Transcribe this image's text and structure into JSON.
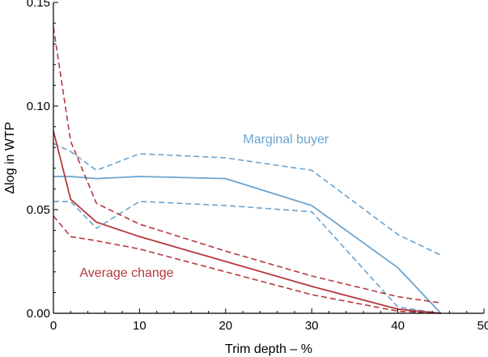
{
  "chart_data": {
    "type": "line",
    "title": "",
    "xlabel": "Trim depth – %",
    "ylabel": "Δlog in WTP",
    "xlim": [
      0,
      50
    ],
    "ylim": [
      0,
      0.15
    ],
    "xticks": [
      0,
      10,
      20,
      30,
      40,
      50
    ],
    "xtick_labels": [
      "0",
      "10",
      "20",
      "30",
      "40",
      "50"
    ],
    "yticks": [
      0,
      0.05,
      0.1,
      0.15
    ],
    "ytick_labels": [
      "0.00",
      "0.05",
      "0.10",
      "0.15"
    ],
    "grid": false,
    "series": [
      {
        "name": "Marginal buyer",
        "color": "#6aa3cf",
        "style": "solid",
        "x": [
          0,
          2,
          5,
          10,
          20,
          30,
          40,
          45
        ],
        "y": [
          0.066,
          0.066,
          0.065,
          0.066,
          0.065,
          0.052,
          0.022,
          0.0
        ]
      },
      {
        "name": "Marginal buyer upper band",
        "color": "#6aa3cf",
        "style": "dashed",
        "x": [
          0,
          2,
          5,
          10,
          20,
          30,
          40,
          45
        ],
        "y": [
          0.082,
          0.078,
          0.069,
          0.077,
          0.075,
          0.069,
          0.038,
          0.028
        ]
      },
      {
        "name": "Marginal buyer lower band",
        "color": "#6aa3cf",
        "style": "dashed",
        "x": [
          0,
          2,
          5,
          10,
          20,
          30,
          40,
          45
        ],
        "y": [
          0.054,
          0.054,
          0.041,
          0.054,
          0.052,
          0.049,
          0.003,
          0.0
        ]
      },
      {
        "name": "Average change",
        "color": "#b5383e",
        "style": "solid",
        "x": [
          0,
          2,
          5,
          10,
          20,
          30,
          40,
          45
        ],
        "y": [
          0.088,
          0.055,
          0.044,
          0.037,
          0.025,
          0.013,
          0.002,
          0.0
        ]
      },
      {
        "name": "Average change upper band",
        "color": "#b5383e",
        "style": "dashed",
        "x": [
          0,
          2,
          5,
          10,
          20,
          30,
          40,
          45
        ],
        "y": [
          0.138,
          0.083,
          0.053,
          0.043,
          0.03,
          0.018,
          0.008,
          0.005
        ]
      },
      {
        "name": "Average change lower band",
        "color": "#b5383e",
        "style": "dashed",
        "x": [
          0,
          2,
          5,
          10,
          20,
          30,
          40,
          45
        ],
        "y": [
          0.047,
          0.037,
          0.035,
          0.031,
          0.02,
          0.009,
          0.001,
          0.0
        ]
      }
    ],
    "annotations": [
      {
        "text": "Marginal buyer",
        "x": 27,
        "y": 0.082,
        "color": "#6aa3cf"
      },
      {
        "text": "Average change",
        "x": 8.5,
        "y": 0.0175,
        "color": "#b5383e"
      }
    ]
  }
}
